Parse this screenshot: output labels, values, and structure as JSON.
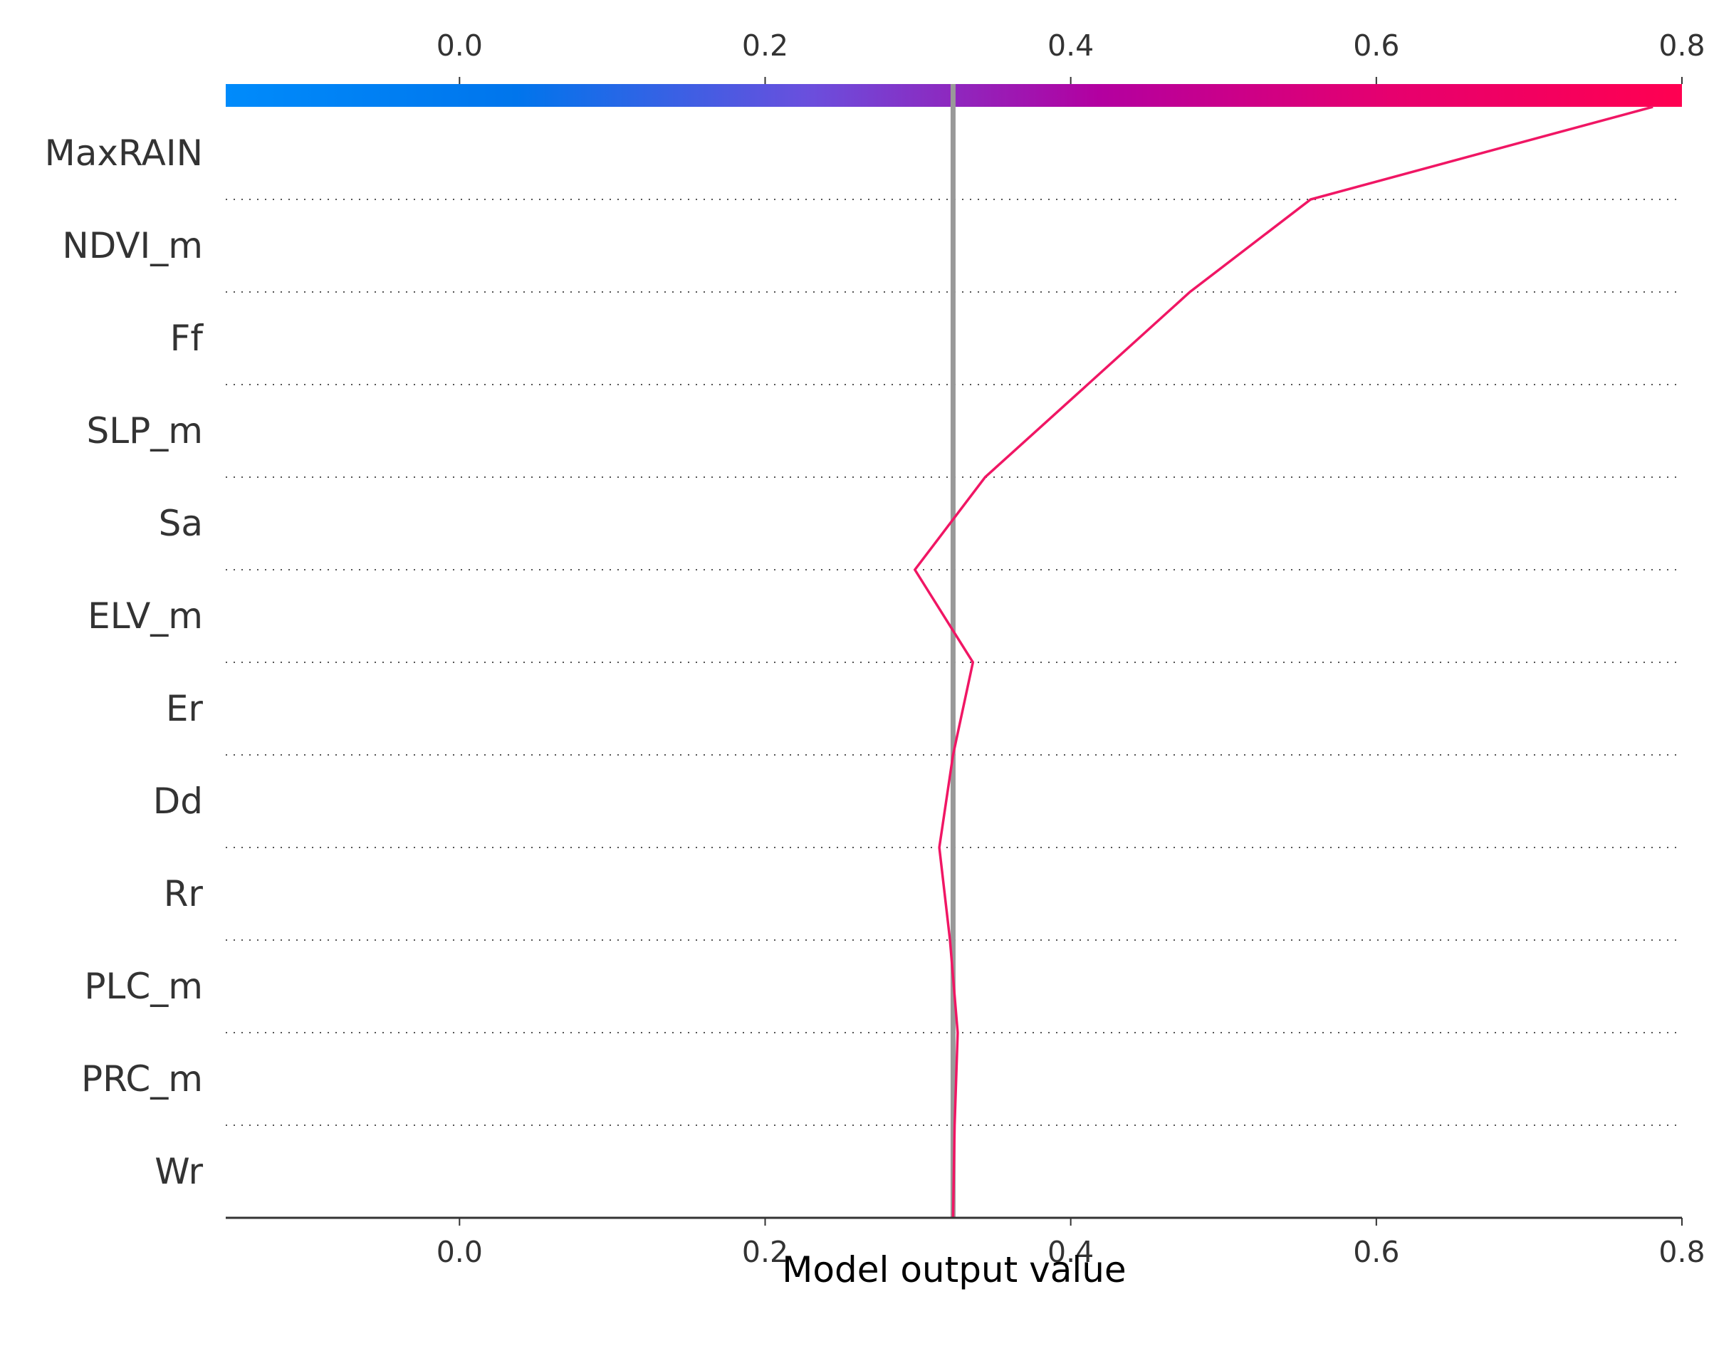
{
  "chart_data": {
    "type": "line",
    "xlabel": "Model output value",
    "xlim": [
      -0.153,
      0.8
    ],
    "x_ticks": [
      "0.0",
      "0.2",
      "0.4",
      "0.6",
      "0.8"
    ],
    "x_tick_values": [
      0.0,
      0.2,
      0.4,
      0.6,
      0.8
    ],
    "base_value": 0.323,
    "features": [
      "MaxRAIN",
      "NDVI_m",
      "Ff",
      "SLP_m",
      "Sa",
      "ELV_m",
      "Er",
      "Dd",
      "Rr",
      "PLC_m",
      "PRC_m",
      "Wr"
    ],
    "path_values": [
      0.781,
      0.557,
      0.478,
      0.411,
      0.344,
      0.298,
      0.336,
      0.323,
      0.314,
      0.321,
      0.326,
      0.324,
      0.323
    ],
    "colorbar": {
      "min": -0.153,
      "max": 0.8,
      "colors": [
        "#008bfb",
        "#0075ec",
        "#6a4fdd",
        "#b300a0",
        "#e6006e",
        "#ff0051"
      ]
    },
    "line_color": "#f01664",
    "base_line_color": "#999999",
    "grid": "dotted horizontal separators"
  }
}
